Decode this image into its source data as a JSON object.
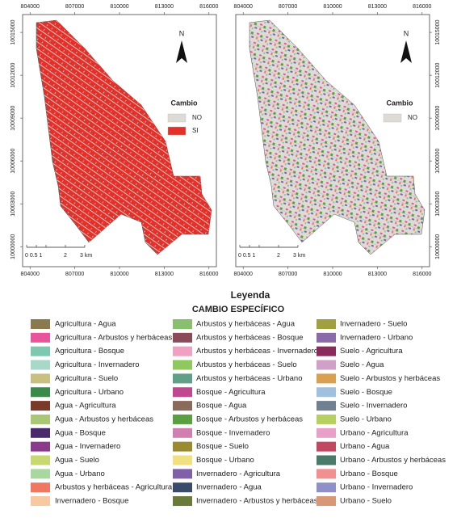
{
  "maps": [
    {
      "legend": {
        "title": "Cambio",
        "items": [
          {
            "label": "NO",
            "color": "#dedad6"
          },
          {
            "label": "SI",
            "color": "#e5302a"
          }
        ]
      }
    },
    {
      "legend": {
        "title": "Cambio",
        "items": [
          {
            "label": "NO",
            "color": "#dedad6"
          }
        ]
      }
    }
  ],
  "axes": {
    "xlim": [
      803500,
      816500
    ],
    "ylim": [
      9998600,
      10016250
    ],
    "xticks": [
      804000,
      807000,
      810000,
      813000,
      816000
    ],
    "yticks": [
      10000000,
      10003000,
      10006000,
      10009000,
      10012000,
      10015000
    ]
  },
  "north": "N",
  "scale_bar": [
    "0 0.5 1",
    "2",
    "3 km"
  ],
  "legend": {
    "title": "Leyenda",
    "subtitle": "CAMBIO ESPECÍFICO",
    "columns": [
      [
        {
          "label": "Agricultura - Agua",
          "color": "#8b7a4e"
        },
        {
          "label": "Agricultura - Arbustos y herbáceas",
          "color": "#e8559a"
        },
        {
          "label": "Agricultura - Bosque",
          "color": "#7fc8b0"
        },
        {
          "label": "Agricultura - Invernadero",
          "color": "#a8d8c8"
        },
        {
          "label": "Agricultura - Suelo",
          "color": "#c8c080"
        },
        {
          "label": "Agricultura - Urbano",
          "color": "#3a8a4a"
        },
        {
          "label": "Agua - Agricultura",
          "color": "#7a3a2a"
        },
        {
          "label": "Agua - Arbustos y herbáceas",
          "color": "#a8c878"
        },
        {
          "label": "Agua - Bosque",
          "color": "#4a2a6a"
        },
        {
          "label": "Agua - Invernadero",
          "color": "#8a3a8a"
        },
        {
          "label": "Agua - Suelo",
          "color": "#c8d870"
        },
        {
          "label": "Agua - Urbano",
          "color": "#a8d8a0"
        },
        {
          "label": "Arbustos y herbáceas - Agricultura",
          "color": "#f07860"
        },
        {
          "label": "Invernadero - Bosque",
          "color": "#f8c8a0"
        }
      ],
      [
        {
          "label": "Arbustos y herbáceas - Agua",
          "color": "#88c070"
        },
        {
          "label": "Arbustos y herbáceas - Bosque",
          "color": "#8a4a5a"
        },
        {
          "label": "Arbustos y herbáceas - Invernadero",
          "color": "#f0a0c0"
        },
        {
          "label": "Arbustos y herbáceas - Suelo",
          "color": "#90c860"
        },
        {
          "label": "Arbustos y herbáceas - Urbano",
          "color": "#60a088"
        },
        {
          "label": "Bosque - Agricultura",
          "color": "#c04890"
        },
        {
          "label": "Bosque - Agua",
          "color": "#8a6a5a"
        },
        {
          "label": "Bosque - Arbustos y herbáceas",
          "color": "#5aa040"
        },
        {
          "label": "Bosque - Invernadero",
          "color": "#d080b0"
        },
        {
          "label": "Bosque - Suelo",
          "color": "#9a8a30"
        },
        {
          "label": "Bosque - Urbano",
          "color": "#f0e080"
        },
        {
          "label": "Invernadero - Agricultura",
          "color": "#8060a8"
        },
        {
          "label": "Invernadero - Agua",
          "color": "#3a4a6a"
        },
        {
          "label": "Invernadero - Arbustos y herbáceas",
          "color": "#6a7a3a"
        }
      ],
      [
        {
          "label": "Invernadero - Suelo",
          "color": "#a0a040"
        },
        {
          "label": "Invernadero - Urbano",
          "color": "#8a6aa8"
        },
        {
          "label": "Suelo - Agricultura",
          "color": "#8a2a5a"
        },
        {
          "label": "Suelo - Agua",
          "color": "#d0a0c8"
        },
        {
          "label": "Suelo - Arbustos y herbáceas",
          "color": "#d8a050"
        },
        {
          "label": "Suelo - Bosque",
          "color": "#a0c0e0"
        },
        {
          "label": "Suelo - Invernadero",
          "color": "#708090"
        },
        {
          "label": "Suelo - Urbano",
          "color": "#b8d060"
        },
        {
          "label": "Urbano - Agricultura",
          "color": "#e8a0c8"
        },
        {
          "label": "Urbano - Agua",
          "color": "#c04860"
        },
        {
          "label": "Urbano - Arbustos y herbáceas",
          "color": "#4a7a6a"
        },
        {
          "label": "Urbano - Bosque",
          "color": "#f09090"
        },
        {
          "label": "Urbano - Invernadero",
          "color": "#9090c8"
        },
        {
          "label": "Urbano - Suelo",
          "color": "#d89878"
        }
      ]
    ]
  }
}
